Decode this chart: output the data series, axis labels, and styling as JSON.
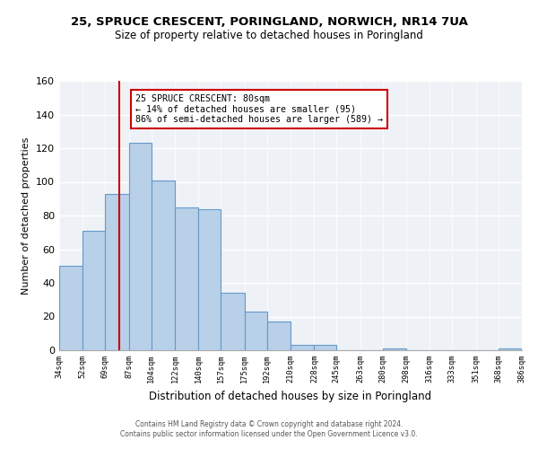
{
  "title": "25, SPRUCE CRESCENT, PORINGLAND, NORWICH, NR14 7UA",
  "subtitle": "Size of property relative to detached houses in Poringland",
  "xlabel": "Distribution of detached houses by size in Poringland",
  "ylabel": "Number of detached properties",
  "bar_color": "#b8d0e8",
  "bar_edge_color": "#6699cc",
  "vline_color": "#cc0000",
  "vline_x": 80,
  "annotation_line1": "25 SPRUCE CRESCENT: 80sqm",
  "annotation_line2": "← 14% of detached houses are smaller (95)",
  "annotation_line3": "86% of semi-detached houses are larger (589) →",
  "annotation_box_color": "#ffffff",
  "annotation_box_edge_color": "#cc0000",
  "bin_edges": [
    34,
    52,
    69,
    87,
    104,
    122,
    140,
    157,
    175,
    192,
    210,
    228,
    245,
    263,
    280,
    298,
    316,
    333,
    351,
    368,
    386
  ],
  "bin_counts": [
    50,
    71,
    93,
    123,
    101,
    85,
    84,
    34,
    23,
    17,
    3,
    3,
    0,
    0,
    1,
    0,
    0,
    0,
    0,
    1
  ],
  "ylim": [
    0,
    160
  ],
  "yticks": [
    0,
    20,
    40,
    60,
    80,
    100,
    120,
    140,
    160
  ],
  "footer_line1": "Contains HM Land Registry data © Crown copyright and database right 2024.",
  "footer_line2": "Contains public sector information licensed under the Open Government Licence v3.0.",
  "background_color": "#eef2f7"
}
